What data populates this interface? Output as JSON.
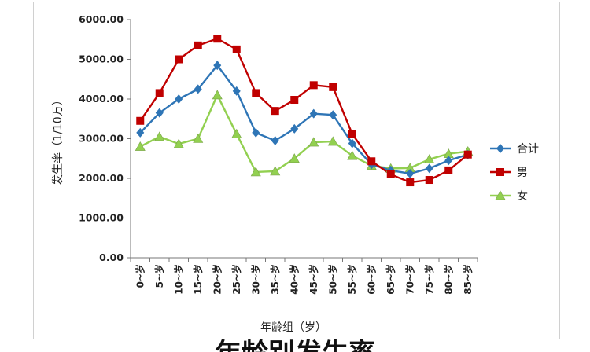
{
  "chart_data": {
    "type": "line",
    "title": "",
    "xlabel": "年龄组（岁）",
    "ylabel": "发生率（1/10万）",
    "ylim": [
      0,
      6000
    ],
    "yticks": [
      "0.00",
      "1000.00",
      "2000.00",
      "3000.00",
      "4000.00",
      "5000.00",
      "6000.00"
    ],
    "categories": [
      "0~岁",
      "5~岁",
      "10~岁",
      "15~岁",
      "20~岁",
      "25~岁",
      "30~岁",
      "35~岁",
      "40~岁",
      "45~岁",
      "50~岁",
      "55~岁",
      "60~岁",
      "65~岁",
      "70~岁",
      "75~岁",
      "80~岁",
      "85~岁"
    ],
    "series": [
      {
        "name": "合计",
        "color": "#2e75b6",
        "marker": "diamond",
        "values": [
          3150,
          3650,
          4000,
          4250,
          4850,
          4200,
          3150,
          2950,
          3250,
          3630,
          3600,
          2880,
          2350,
          2200,
          2120,
          2250,
          2450,
          2600
        ]
      },
      {
        "name": "男",
        "color": "#c00000",
        "marker": "square",
        "values": [
          3450,
          4150,
          5000,
          5350,
          5520,
          5250,
          4150,
          3700,
          3980,
          4350,
          4300,
          3120,
          2430,
          2100,
          1900,
          1960,
          2200,
          2600
        ]
      },
      {
        "name": "女",
        "color": "#92d050",
        "marker": "triangle",
        "values": [
          2800,
          3050,
          2870,
          3000,
          4100,
          3120,
          2160,
          2180,
          2500,
          2910,
          2930,
          2570,
          2320,
          2250,
          2260,
          2480,
          2620,
          2680
        ]
      }
    ],
    "grid": false,
    "legend_position": "right"
  },
  "caption": "年龄别发生率"
}
